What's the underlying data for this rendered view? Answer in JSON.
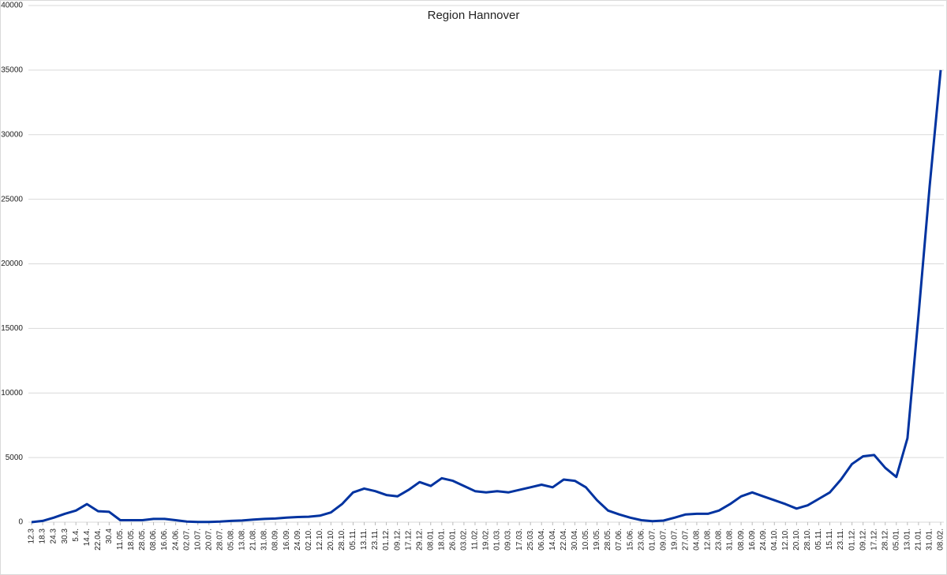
{
  "chart_data": {
    "type": "line",
    "title": "Region Hannover",
    "categories": [
      "12.3",
      "18.3",
      "24.3",
      "30.3",
      "5.4.",
      "14.4.",
      "22.04.",
      "30.4",
      "11.05.",
      "18.05.",
      "28.05.",
      "08.06.",
      "16.06.",
      "24.06.",
      "02.07.",
      "10.07.",
      "20.07.",
      "28.07.",
      "05.08.",
      "13.08.",
      "21.08.",
      "31.08.",
      "08.09.",
      "16.09.",
      "24.09.",
      "02.10.",
      "12.10.",
      "20.10.",
      "28.10.",
      "05.11.",
      "13.11.",
      "23.11.",
      "01.12.",
      "09.12.",
      "17.12.",
      "29.12.",
      "08.01.",
      "18.01.",
      "26.01.",
      "03.02.",
      "11.02.",
      "19.02.",
      "01.03.",
      "09.03.",
      "17.03.",
      "25.03.",
      "06.04.",
      "14.04.",
      "22.04.",
      "30.04.",
      "10.05.",
      "19.05.",
      "28.05.",
      "07.06.",
      "15.06.",
      "23.06.",
      "01.07.",
      "09.07.",
      "19.07.",
      "27.07.",
      "04.08.",
      "12.08.",
      "23.08.",
      "31.08.",
      "08.09.",
      "16.09.",
      "24.09.",
      "04.10.",
      "12.10.",
      "20.10.",
      "28.10.",
      "05.11.",
      "15.11.",
      "23.11.",
      "01.12.",
      "09.12.",
      "17.12.",
      "28.12.",
      "05.01.",
      "13.01.",
      "21.01.",
      "31.01.",
      "08.02."
    ],
    "values": [
      0,
      100,
      350,
      650,
      900,
      1400,
      850,
      800,
      150,
      150,
      150,
      250,
      250,
      150,
      50,
      20,
      20,
      40,
      100,
      130,
      200,
      250,
      280,
      350,
      400,
      420,
      500,
      750,
      1400,
      2300,
      2600,
      2400,
      2100,
      2000,
      2500,
      3100,
      2800,
      3400,
      3200,
      2800,
      2400,
      2300,
      2400,
      2300,
      2500,
      2700,
      2900,
      2700,
      3300,
      3200,
      2700,
      1700,
      900,
      600,
      350,
      150,
      80,
      120,
      350,
      600,
      650,
      650,
      900,
      1400,
      2000,
      2300,
      2000,
      1700,
      1400,
      1050,
      1300,
      1800,
      2300,
      3300,
      4500,
      5100,
      5200,
      4200,
      3500,
      6500,
      16000,
      26000,
      35000
    ],
    "color": "#0033a0",
    "ylim": [
      0,
      40000
    ],
    "yticks": [
      0,
      5000,
      10000,
      15000,
      20000,
      25000,
      30000,
      35000,
      40000
    ],
    "grid": true
  }
}
